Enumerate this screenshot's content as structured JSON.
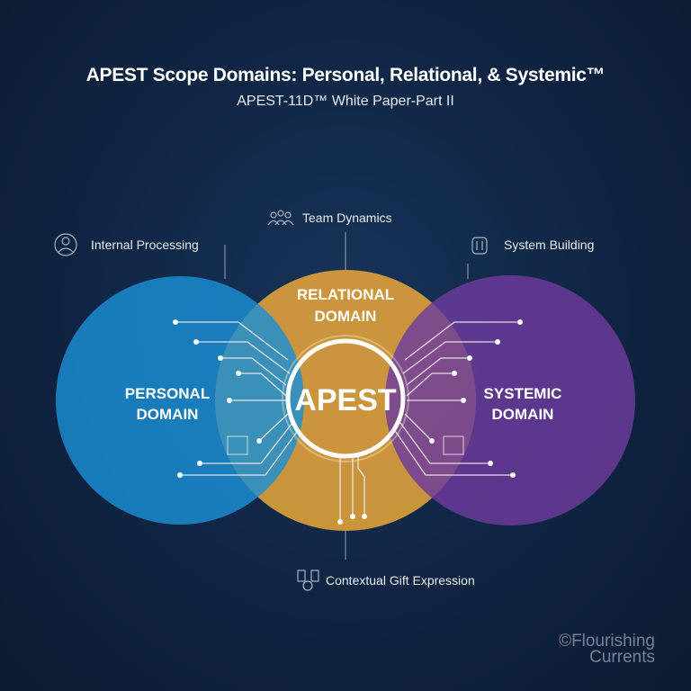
{
  "title": "APEST Scope Domains: Personal, Relational, & Systemic™",
  "subtitle": "APEST-11D™ White Paper-Part II",
  "labels": {
    "internal": "Internal Processing",
    "team": "Team Dynamics",
    "system": "System Building",
    "contextual": "Contextual Gift Expression"
  },
  "domains": {
    "personal": [
      "PERSONAL",
      "DOMAIN"
    ],
    "relational": [
      "RELATIONAL",
      "DOMAIN"
    ],
    "systemic": [
      "SYSTEMIC",
      "DOMAIN"
    ],
    "center": "APEST"
  },
  "colors": {
    "personal": "#1b8fd4",
    "relational": "#d49b3b",
    "systemic": "#6c3a9c",
    "background": "#0f2442"
  },
  "watermark": {
    "symbol": "©",
    "line1": "Flourishing",
    "line2": "Currents"
  }
}
